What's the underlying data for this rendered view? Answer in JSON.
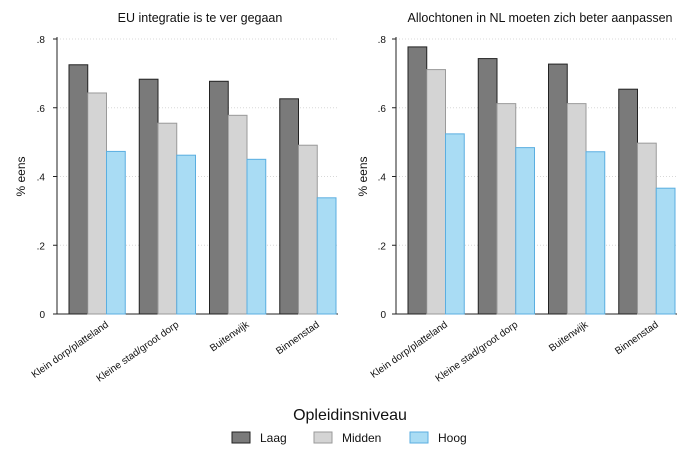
{
  "chart_data": [
    {
      "type": "bar",
      "title": "EU integratie is te ver gegaan",
      "ylabel": "% eens",
      "ylim": [
        0,
        0.8
      ],
      "yticks": [
        ".8",
        ".6",
        ".4",
        ".2",
        "0"
      ],
      "yticks_values": [
        0.8,
        0.6,
        0.4,
        0.2,
        0
      ],
      "grid": "horizontal dotted",
      "categories": [
        "Klein dorp/platteland",
        "Kleine stad/groot dorp",
        "Buitenwijk",
        "Binnenstad"
      ],
      "series": [
        {
          "name": "Laag",
          "values": [
            0.725,
            0.683,
            0.677,
            0.626
          ]
        },
        {
          "name": "Midden",
          "values": [
            0.643,
            0.555,
            0.578,
            0.491
          ]
        },
        {
          "name": "Hoog",
          "values": [
            0.473,
            0.462,
            0.45,
            0.338
          ]
        }
      ]
    },
    {
      "type": "bar",
      "title": "Allochtonen in NL moeten zich beter aanpassen",
      "ylabel": "% eens",
      "ylim": [
        0,
        0.8
      ],
      "yticks": [
        ".8",
        ".6",
        ".4",
        ".2",
        "0"
      ],
      "yticks_values": [
        0.8,
        0.6,
        0.4,
        0.2,
        0
      ],
      "grid": "horizontal dotted",
      "categories": [
        "Klein dorp/platteland",
        "Kleine stad/groot dorp",
        "Buitenwijk",
        "Binnenstad"
      ],
      "series": [
        {
          "name": "Laag",
          "values": [
            0.777,
            0.743,
            0.727,
            0.654
          ]
        },
        {
          "name": "Midden",
          "values": [
            0.711,
            0.612,
            0.612,
            0.497
          ]
        },
        {
          "name": "Hoog",
          "values": [
            0.524,
            0.484,
            0.472,
            0.366
          ]
        }
      ]
    }
  ],
  "legend": {
    "title": "Opleidinsniveau",
    "placement": "bottom-center",
    "items": [
      "Laag",
      "Midden",
      "Hoog"
    ]
  },
  "colors": {
    "Laag": "#7a7a7a",
    "Midden": "#d4d4d4",
    "Hoog": "#a9dcf4",
    "Laag_stroke": "#222222",
    "Midden_stroke": "#9a9a9a",
    "Hoog_stroke": "#5aaee0",
    "grid": "#d8d8d8",
    "axis": "#222222"
  }
}
